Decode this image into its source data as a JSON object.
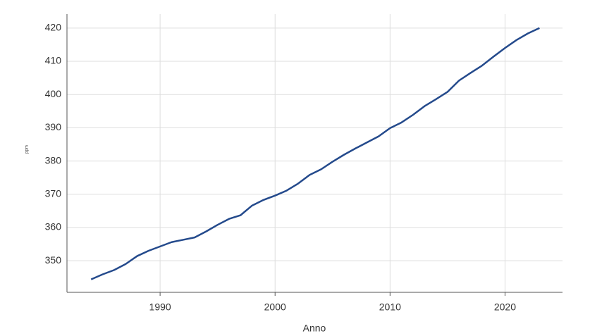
{
  "chart_data": {
    "type": "line",
    "x_label": "Anno",
    "y_label": "ppm",
    "x": [
      1984,
      1985,
      1986,
      1987,
      1988,
      1989,
      1990,
      1991,
      1992,
      1993,
      1994,
      1995,
      1996,
      1997,
      1998,
      1999,
      2000,
      2001,
      2002,
      2003,
      2004,
      2005,
      2006,
      2007,
      2008,
      2009,
      2010,
      2011,
      2012,
      2013,
      2014,
      2015,
      2016,
      2017,
      2018,
      2019,
      2020,
      2021,
      2022,
      2023
    ],
    "series": [
      {
        "color": "#244a8c",
        "values": [
          344.4,
          345.9,
          347.2,
          349.0,
          351.4,
          353.0,
          354.3,
          355.6,
          356.3,
          357.0,
          358.8,
          360.8,
          362.6,
          363.7,
          366.6,
          368.3,
          369.6,
          371.1,
          373.2,
          375.8,
          377.5,
          379.8,
          381.9,
          383.8,
          385.6,
          387.4,
          389.9,
          391.6,
          393.9,
          396.5,
          398.6,
          400.8,
          404.2,
          406.5,
          408.7,
          411.4,
          414.0,
          416.4,
          418.4,
          420.0
        ]
      }
    ],
    "xlim": [
      1981.9,
      2025.0
    ],
    "xticks": [
      1990,
      2000,
      2010,
      2020
    ],
    "ylim": [
      340.5,
      424.2
    ],
    "yticks": [
      350,
      360,
      370,
      380,
      390,
      400,
      410,
      420
    ],
    "grid": true
  }
}
